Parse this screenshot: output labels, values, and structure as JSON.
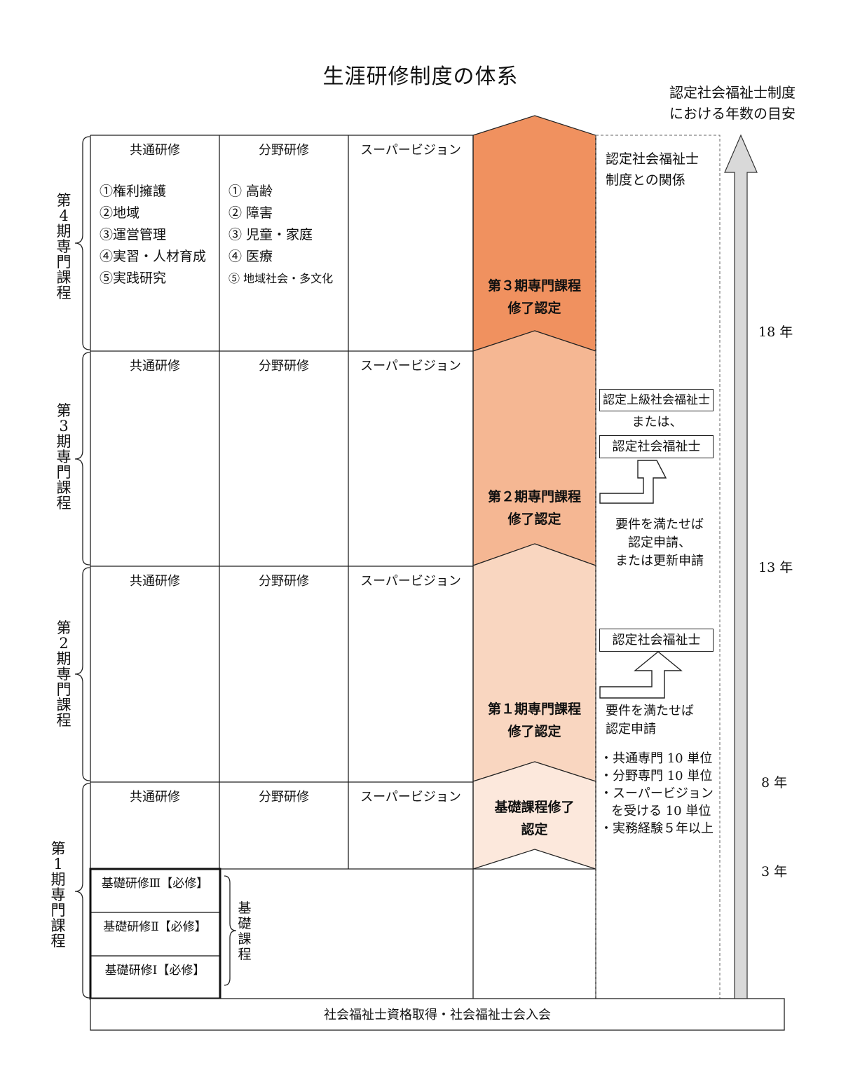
{
  "title": "生涯研修制度の体系",
  "top_note": [
    "認定社会福祉士制度",
    "における年数の目安"
  ],
  "column_headers": [
    "共通研修",
    "分野研修",
    "スーパービジョン"
  ],
  "stages": [
    {
      "label": "第4期専門課程"
    },
    {
      "label": "第3期専門課程"
    },
    {
      "label": "第2期専門課程"
    },
    {
      "label": "第1期専門課程"
    }
  ],
  "stage4_common": [
    "①権利擁護",
    "②地域",
    "③運営管理",
    "④実習・人材育成",
    "⑤実践研究"
  ],
  "stage4_field": [
    "① 高齢",
    "② 障害",
    "③ 児童・家庭",
    "④ 医療",
    "⑤ 地域社会・多文化"
  ],
  "kiso": {
    "rows": [
      "基礎研修Ⅲ【必修】",
      "基礎研修Ⅱ【必修】",
      "基礎研修Ⅰ【必修】"
    ],
    "label": "基礎課程"
  },
  "badges": [
    {
      "lines": [
        "第３期専門課程",
        "修了認定"
      ],
      "color": "#f0915f"
    },
    {
      "lines": [
        "第２期専門課程",
        "修了認定"
      ],
      "color": "#f5b793"
    },
    {
      "lines": [
        "第１期専門課程",
        "修了認定"
      ],
      "color": "#f9d6c0"
    },
    {
      "lines": [
        "基礎課程修了",
        "認定"
      ],
      "color": "#fce8dc"
    }
  ],
  "relation": {
    "heading": [
      "認定社会福祉士",
      "制度との関係"
    ],
    "box_senior": "認定上級社会福祉士",
    "or_text": "または、",
    "box_certified_1": "認定社会福祉士",
    "req_1": [
      "要件を満たせば",
      "認定申請、",
      "または更新申請"
    ],
    "box_certified_2": "認定社会福祉士",
    "req_2": [
      "要件を満たせば",
      "認定申請"
    ],
    "conditions": [
      "・共通専門 10 単位",
      "・分野専門 10 単位",
      "・スーパービジョン",
      "を受ける 10 単位",
      "・実務経験５年以上"
    ]
  },
  "years": [
    "18 年",
    "13 年",
    "8 年",
    "3 年"
  ],
  "base": "社会福祉士資格取得・社会福祉士会入会"
}
